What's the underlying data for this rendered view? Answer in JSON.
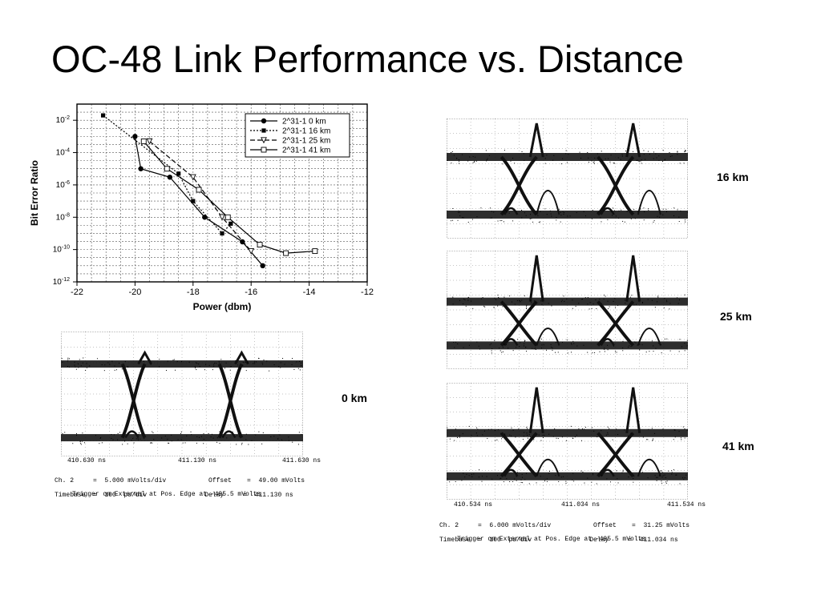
{
  "slide": {
    "title": "OC-48 Link Performance vs. Distance"
  },
  "chart_data": {
    "type": "scatter",
    "ylabel": "Bit Error Ratio",
    "xlabel": "Power (dbm)",
    "xlim": [
      -22,
      -12
    ],
    "ylim_log10": [
      -12,
      -1
    ],
    "y_scale": "log",
    "x_ticks": [
      "-22",
      "-20",
      "-18",
      "-16",
      "-14",
      "-12"
    ],
    "y_ticks": [
      {
        "exp": -2,
        "base": "10",
        "sup": "-2"
      },
      {
        "exp": -4,
        "base": "10",
        "sup": "-4"
      },
      {
        "exp": -6,
        "base": "10",
        "sup": "-6"
      },
      {
        "exp": -8,
        "base": "10",
        "sup": "-8"
      },
      {
        "exp": -10,
        "base": "10",
        "sup": "-10"
      },
      {
        "exp": -12,
        "base": "10",
        "sup": "-12"
      }
    ],
    "grid": true,
    "legend_position": "top-right",
    "series": [
      {
        "name": "2^31-1  0 km",
        "marker": "filled-circle",
        "line": "solid",
        "x": [
          -20,
          -19.8,
          -18.8,
          -17.6,
          -16.3,
          -15.6
        ],
        "y": [
          0.001,
          1e-05,
          3e-06,
          1e-08,
          3e-10,
          1e-11
        ]
      },
      {
        "name": "2^31-1  16 km",
        "marker": "filled-square",
        "line": "dotted",
        "x": [
          -21.1,
          -18.5,
          -18,
          -17,
          -16.7
        ],
        "y": [
          0.02,
          5e-06,
          1e-07,
          1e-09,
          4e-09
        ]
      },
      {
        "name": "2^31-1  25 km",
        "marker": "open-triangle",
        "line": "dashed",
        "x": [
          -19.5,
          -18,
          -17,
          -16
        ],
        "y": [
          0.0005,
          3e-06,
          1e-08,
          8e-11
        ]
      },
      {
        "name": "2^31-1  41 km",
        "marker": "open-square",
        "line": "solid",
        "x": [
          -19.7,
          -18.9,
          -17.8,
          -16.8,
          -15.7,
          -14.8,
          -13.8
        ],
        "y": [
          0.0005,
          1e-05,
          5e-07,
          1e-08,
          2e-10,
          6e-11,
          8e-11
        ]
      }
    ]
  },
  "eye_diagrams": {
    "zero_km": {
      "label": "0 km",
      "times": [
        "410.630 ns",
        "411.130 ns",
        "411.630 ns"
      ],
      "ch_line": "Ch. 2     =  5.000 mVolts/div           Offset    =  49.00 mVolts",
      "timebase_line": "Timebase  =  100  ps/div               Delay     =  411.130 ns",
      "trigger_line": "Trigger on External at Pos. Edge at -495.5 mVolts"
    },
    "sixteen_km": {
      "label": "16 km"
    },
    "twentyfive_km": {
      "label": "25 km"
    },
    "fortyone_km": {
      "label": "41 km",
      "times": [
        "410.534 ns",
        "411.034 ns",
        "411.534 ns"
      ],
      "ch_line": "Ch. 2     =  6.000 mVolts/div           Offset    =  31.25 mVolts",
      "timebase_line": "Timebase  =  100  ps/div               Delay     =  411.034 ns",
      "trigger_line": "Trigger on External at Pos. Edge at -495.5 mVolts"
    }
  }
}
